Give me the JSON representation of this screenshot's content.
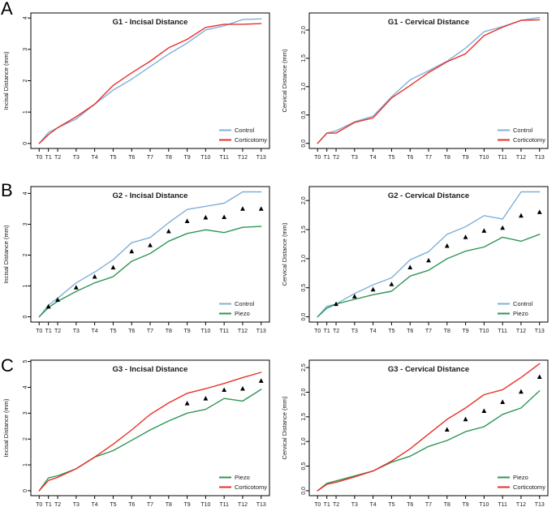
{
  "figure": {
    "background": "#ffffff"
  },
  "colors": {
    "control": "#7FB0D9",
    "corticotomy": "#E8302A",
    "piezo": "#2F9556",
    "marker": "#000000",
    "axis": "#000000"
  },
  "panels": [
    {
      "label": "A"
    },
    {
      "label": "B"
    },
    {
      "label": "C"
    }
  ],
  "chart_data": [
    {
      "type": "line",
      "key": "g1-incisal",
      "panel": "A",
      "title": "G1 - Incisal Distance",
      "xlabel": "",
      "ylabel": "Incisal Distance (mm)",
      "x": [
        0,
        0.5,
        1,
        2,
        3,
        4,
        5,
        6,
        7,
        8,
        9,
        10,
        11,
        12
      ],
      "xtick_labels": [
        "T0",
        "T1",
        "T2",
        "T3",
        "T4",
        "T5",
        "T6",
        "T7",
        "T8",
        "T9",
        "T10",
        "T11",
        "T12",
        "T13"
      ],
      "ytick_values": [
        0,
        1,
        2,
        3,
        4
      ],
      "ytick_labels": [
        "0",
        "1",
        "2",
        "3",
        "4"
      ],
      "ylim": [
        -0.16,
        4.16
      ],
      "grid": false,
      "legend_position": "bottom-right",
      "series": [
        {
          "name": "Control",
          "color": "control",
          "values": [
            0,
            0.35,
            0.5,
            0.78,
            1.25,
            1.7,
            2.05,
            2.45,
            2.85,
            3.2,
            3.62,
            3.75,
            3.95,
            3.97
          ]
        },
        {
          "name": "Corticotomy",
          "color": "corticotomy",
          "values": [
            0,
            0.28,
            0.5,
            0.85,
            1.25,
            1.85,
            2.25,
            2.62,
            3.05,
            3.32,
            3.7,
            3.8,
            3.8,
            3.82
          ]
        }
      ],
      "markers": []
    },
    {
      "type": "line",
      "key": "g1-cervical",
      "panel": "A",
      "title": "G1 - Cervical Distance",
      "xlabel": "",
      "ylabel": "Cervical Distance (mm)",
      "x": [
        0,
        0.5,
        1,
        2,
        3,
        4,
        5,
        6,
        7,
        8,
        9,
        10,
        11,
        12
      ],
      "xtick_labels": [
        "T0",
        "T1",
        "T2",
        "T3",
        "T4",
        "T5",
        "T6",
        "T7",
        "T8",
        "T9",
        "T10",
        "T11",
        "T12",
        "T13"
      ],
      "ytick_values": [
        0,
        0.5,
        1.0,
        1.5,
        2.0
      ],
      "ytick_labels": [
        "0,0",
        "0,5",
        "1,0",
        "1,5",
        "2,0"
      ],
      "ylim": [
        -0.09,
        2.3
      ],
      "grid": false,
      "legend_position": "bottom-right",
      "series": [
        {
          "name": "Control",
          "color": "control",
          "values": [
            0,
            0.18,
            0.22,
            0.38,
            0.48,
            0.82,
            1.12,
            1.28,
            1.45,
            1.68,
            1.97,
            2.06,
            2.17,
            2.22
          ]
        },
        {
          "name": "Corticotomy",
          "color": "corticotomy",
          "values": [
            0,
            0.18,
            0.18,
            0.37,
            0.45,
            0.8,
            1.02,
            1.25,
            1.44,
            1.58,
            1.9,
            2.05,
            2.17,
            2.18
          ]
        }
      ],
      "markers": []
    },
    {
      "type": "line",
      "key": "g2-incisal",
      "panel": "B",
      "title": "G2 - Incisal Distance",
      "xlabel": "",
      "ylabel": "Incisal Distance (mm)",
      "x": [
        0,
        0.5,
        1,
        2,
        3,
        4,
        5,
        6,
        7,
        8,
        9,
        10,
        11,
        12
      ],
      "xtick_labels": [
        "T0",
        "T1",
        "T2",
        "T3",
        "T4",
        "T5",
        "T6",
        "T7",
        "T8",
        "T9",
        "T10",
        "T11",
        "T12",
        "T13"
      ],
      "ytick_values": [
        0,
        1,
        2,
        3,
        4
      ],
      "ytick_labels": [
        "0",
        "1",
        "2",
        "3",
        "4"
      ],
      "ylim": [
        -0.17,
        4.22
      ],
      "grid": false,
      "legend_position": "bottom-right",
      "series": [
        {
          "name": "Control",
          "color": "control",
          "values": [
            0,
            0.38,
            0.6,
            1.1,
            1.45,
            1.85,
            2.4,
            2.57,
            3.05,
            3.48,
            3.58,
            3.68,
            4.05,
            4.05
          ]
        },
        {
          "name": "Piezo",
          "color": "piezo",
          "values": [
            0,
            0.3,
            0.5,
            0.82,
            1.1,
            1.3,
            1.8,
            2.05,
            2.45,
            2.7,
            2.82,
            2.73,
            2.9,
            2.93
          ]
        }
      ],
      "markers": [
        [
          0.5,
          0.33
        ],
        [
          1,
          0.55
        ],
        [
          2,
          0.95
        ],
        [
          3,
          1.3
        ],
        [
          4,
          1.6
        ],
        [
          5,
          2.12
        ],
        [
          6,
          2.32
        ],
        [
          7,
          2.77
        ],
        [
          8,
          3.1
        ],
        [
          9,
          3.22
        ],
        [
          10,
          3.23
        ],
        [
          11,
          3.5
        ],
        [
          12,
          3.5
        ]
      ]
    },
    {
      "type": "line",
      "key": "g2-cervical",
      "panel": "B",
      "title": "G2 - Cervical Distance",
      "xlabel": "",
      "ylabel": "Cervical Distance (mm)",
      "x": [
        0,
        0.5,
        1,
        2,
        3,
        4,
        5,
        6,
        7,
        8,
        9,
        10,
        11,
        12
      ],
      "xtick_labels": [
        "T0",
        "T1",
        "T2",
        "T3",
        "T4",
        "T5",
        "T6",
        "T7",
        "T8",
        "T9",
        "T10",
        "T11",
        "T12",
        "T13"
      ],
      "ytick_values": [
        0,
        0.5,
        1.0,
        1.5,
        2.0
      ],
      "ytick_labels": [
        "0,0",
        "0,5",
        "1,0",
        "1,5",
        "2,0"
      ],
      "ylim": [
        -0.09,
        2.24
      ],
      "grid": false,
      "legend_position": "bottom-right",
      "series": [
        {
          "name": "Control",
          "color": "control",
          "values": [
            0,
            0.18,
            0.22,
            0.4,
            0.55,
            0.67,
            0.98,
            1.12,
            1.42,
            1.55,
            1.74,
            1.68,
            2.15,
            2.15
          ]
        },
        {
          "name": "Piezo",
          "color": "piezo",
          "values": [
            0,
            0.15,
            0.22,
            0.3,
            0.38,
            0.44,
            0.7,
            0.8,
            1.0,
            1.13,
            1.2,
            1.37,
            1.3,
            1.42
          ]
        }
      ],
      "markers": [
        [
          1,
          0.22
        ],
        [
          2,
          0.35
        ],
        [
          3,
          0.47
        ],
        [
          4,
          0.56
        ],
        [
          5,
          0.85
        ],
        [
          6,
          0.97
        ],
        [
          7,
          1.22
        ],
        [
          8,
          1.37
        ],
        [
          9,
          1.48
        ],
        [
          10,
          1.53
        ],
        [
          11,
          1.74
        ],
        [
          12,
          1.8
        ]
      ]
    },
    {
      "type": "line",
      "key": "g3-incisal",
      "panel": "C",
      "title": "G3 - Incisal Distance",
      "xlabel": "",
      "ylabel": "Incisal Distance (mm)",
      "x": [
        0,
        0.5,
        1,
        2,
        3,
        4,
        5,
        6,
        7,
        8,
        9,
        10,
        11,
        12
      ],
      "xtick_labels": [
        "T0",
        "T1",
        "T2",
        "T3",
        "T4",
        "T5",
        "T6",
        "T7",
        "T8",
        "T9",
        "T10",
        "T11",
        "T12",
        "T13"
      ],
      "ytick_values": [
        0,
        1,
        2,
        3,
        4,
        5
      ],
      "ytick_labels": [
        "0",
        "1",
        "2",
        "3",
        "4",
        "5"
      ],
      "ylim": [
        -0.19,
        5.05
      ],
      "grid": false,
      "legend_position": "bottom-right",
      "series": [
        {
          "name": "Piezo",
          "color": "piezo",
          "values": [
            0,
            0.5,
            0.58,
            0.85,
            1.3,
            1.55,
            1.95,
            2.35,
            2.7,
            3.0,
            3.15,
            3.57,
            3.47,
            3.92
          ]
        },
        {
          "name": "Corticotomy",
          "color": "corticotomy",
          "values": [
            0,
            0.4,
            0.52,
            0.85,
            1.3,
            1.8,
            2.35,
            2.95,
            3.4,
            3.77,
            3.95,
            4.15,
            4.38,
            4.58
          ]
        }
      ],
      "markers": [
        [
          8,
          3.38
        ],
        [
          9,
          3.57
        ],
        [
          10,
          3.9
        ],
        [
          11,
          3.95
        ],
        [
          12,
          4.25
        ]
      ]
    },
    {
      "type": "line",
      "key": "g3-cervical",
      "panel": "C",
      "title": "G3 - Cervical Distance",
      "xlabel": "",
      "ylabel": "Cervical Distance (mm)",
      "x": [
        0,
        0.5,
        1,
        2,
        3,
        4,
        5,
        6,
        7,
        8,
        9,
        10,
        11,
        12
      ],
      "xtick_labels": [
        "T0",
        "T1",
        "T2",
        "T3",
        "T4",
        "T5",
        "T6",
        "T7",
        "T8",
        "T9",
        "T10",
        "T11",
        "T12",
        "T13"
      ],
      "ytick_values": [
        0,
        0.5,
        1.0,
        1.5,
        2.0,
        2.5
      ],
      "ytick_labels": [
        "0,0",
        "0,5",
        "1,0",
        "1,5",
        "2,0",
        "2,5"
      ],
      "ylim": [
        -0.1,
        2.65
      ],
      "grid": false,
      "legend_position": "bottom-right",
      "series": [
        {
          "name": "Piezo",
          "color": "piezo",
          "values": [
            0,
            0.15,
            0.2,
            0.3,
            0.4,
            0.58,
            0.7,
            0.9,
            1.02,
            1.2,
            1.3,
            1.55,
            1.68,
            2.03
          ]
        },
        {
          "name": "Corticotomy",
          "color": "corticotomy",
          "values": [
            0,
            0.13,
            0.17,
            0.28,
            0.4,
            0.6,
            0.85,
            1.15,
            1.45,
            1.68,
            1.95,
            2.05,
            2.3,
            2.58
          ]
        }
      ],
      "markers": [
        [
          7,
          1.24
        ],
        [
          8,
          1.45
        ],
        [
          9,
          1.62
        ],
        [
          10,
          1.8
        ],
        [
          11,
          2.01
        ],
        [
          12,
          2.31
        ]
      ]
    }
  ]
}
